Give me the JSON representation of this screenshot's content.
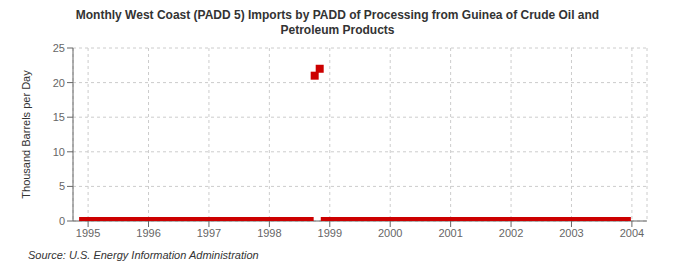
{
  "chart_data": {
    "type": "scatter",
    "title": "Monthly West Coast (PADD 5) Imports by PADD of Processing from Guinea of Crude Oil and\nPetroleum Products",
    "ylabel": "Thousand Barrels per Day",
    "source": "Source: U.S. Energy Information Administration",
    "x": [
      1994.917,
      1995.0,
      1995.083,
      1995.167,
      1995.25,
      1995.333,
      1995.417,
      1995.5,
      1995.583,
      1995.667,
      1995.75,
      1995.833,
      1995.917,
      1996.0,
      1996.083,
      1996.167,
      1996.25,
      1996.333,
      1996.417,
      1996.5,
      1996.583,
      1996.667,
      1996.75,
      1996.833,
      1996.917,
      1997.0,
      1997.083,
      1997.167,
      1997.25,
      1997.333,
      1997.417,
      1997.5,
      1997.583,
      1997.667,
      1997.75,
      1997.833,
      1997.917,
      1998.0,
      1998.083,
      1998.167,
      1998.25,
      1998.333,
      1998.417,
      1998.5,
      1998.583,
      1998.667,
      1998.75,
      1998.833,
      1998.917,
      1999.0,
      1999.083,
      1999.167,
      1999.25,
      1999.333,
      1999.417,
      1999.5,
      1999.583,
      1999.667,
      1999.75,
      1999.833,
      1999.917,
      2000.0,
      2000.083,
      2000.167,
      2000.25,
      2000.333,
      2000.417,
      2000.5,
      2000.583,
      2000.667,
      2000.75,
      2000.833,
      2000.917,
      2001.0,
      2001.083,
      2001.167,
      2001.25,
      2001.333,
      2001.417,
      2001.5,
      2001.583,
      2001.667,
      2001.75,
      2001.833,
      2001.917,
      2002.0,
      2002.083,
      2002.167,
      2002.25,
      2002.333,
      2002.417,
      2002.5,
      2002.583,
      2002.667,
      2002.75,
      2002.833,
      2002.917,
      2003.0,
      2003.083,
      2003.167,
      2003.25,
      2003.333,
      2003.417,
      2003.5,
      2003.583,
      2003.667,
      2003.75,
      2003.833,
      2003.917
    ],
    "values": [
      0,
      0,
      0,
      0,
      0,
      0,
      0,
      0,
      0,
      0,
      0,
      0,
      0,
      0,
      0,
      0,
      0,
      0,
      0,
      0,
      0,
      0,
      0,
      0,
      0,
      0,
      0,
      0,
      0,
      0,
      0,
      0,
      0,
      0,
      0,
      0,
      0,
      0,
      0,
      0,
      0,
      0,
      0,
      0,
      0,
      0,
      21.0,
      22.0,
      0,
      0,
      0,
      0,
      0,
      0,
      0,
      0,
      0,
      0,
      0,
      0,
      0,
      0,
      0,
      0,
      0,
      0,
      0,
      0,
      0,
      0,
      0,
      0,
      0,
      0,
      0,
      0,
      0,
      0,
      0,
      0,
      0,
      0,
      0,
      0,
      0,
      0,
      0,
      0,
      0,
      0,
      0,
      0,
      0,
      0,
      0,
      0,
      0,
      0,
      0,
      0,
      0,
      0,
      0,
      0,
      0,
      0,
      0,
      0,
      0
    ],
    "color": "#cc0000",
    "marker": "square",
    "xlim": [
      1994.75,
      2004.25
    ],
    "ylim": [
      0,
      25
    ],
    "xticks": [
      1995,
      1996,
      1997,
      1998,
      1999,
      2000,
      2001,
      2002,
      2003,
      2004
    ],
    "yticks": [
      0,
      5,
      10,
      15,
      20,
      25
    ],
    "grid": true
  }
}
